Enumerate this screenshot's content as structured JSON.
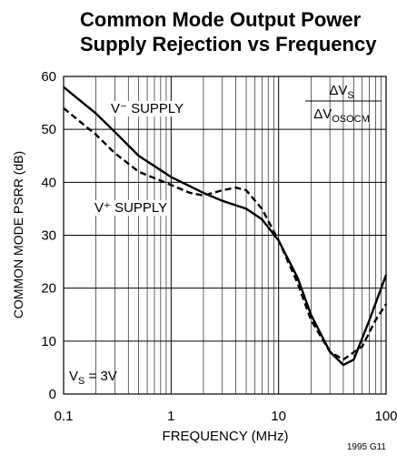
{
  "chart_data": {
    "type": "line",
    "title": [
      "Common Mode Output Power",
      "Supply Rejection vs Frequency"
    ],
    "x_label": "FREQUENCY (MHz)",
    "y_label": "COMMON MODE PSRR (dB)",
    "log_x": true,
    "grid": true,
    "xlim": [
      0.1,
      100
    ],
    "xticks": [
      0.1,
      1,
      10,
      100
    ],
    "x_minor_ticks": [
      0.2,
      0.3,
      0.4,
      0.5,
      0.6,
      0.7,
      0.8,
      0.9,
      2,
      3,
      4,
      5,
      6,
      7,
      8,
      9,
      20,
      30,
      40,
      50,
      60,
      70,
      80,
      90
    ],
    "ylim": [
      0,
      60
    ],
    "yticks": [
      0,
      10,
      20,
      30,
      40,
      50,
      60
    ],
    "series": [
      {
        "name": "V⁻ SUPPLY",
        "color": "#000000",
        "dash": false,
        "x": [
          0.1,
          0.2,
          0.3,
          0.5,
          1,
          2,
          3,
          5,
          7,
          10,
          15,
          20,
          30,
          40,
          50,
          70,
          100
        ],
        "values": [
          58,
          53,
          49.5,
          45,
          41,
          38,
          36.5,
          35,
          33,
          29,
          22,
          15,
          8,
          5.5,
          6.5,
          14,
          22.5
        ]
      },
      {
        "name": "V⁺ SUPPLY",
        "color": "#000000",
        "dash": true,
        "x": [
          0.1,
          0.2,
          0.3,
          0.5,
          1,
          1.5,
          2,
          3,
          4,
          5,
          7,
          10,
          15,
          20,
          30,
          40,
          60,
          80,
          100
        ],
        "values": [
          54,
          49,
          45.5,
          42,
          39.5,
          38,
          37.5,
          38.5,
          39,
          38.5,
          35,
          29,
          21,
          14,
          8,
          6.5,
          9,
          14,
          17
        ]
      }
    ],
    "annotations": {
      "ratio_top": {
        "main": "ΔV",
        "sub": "S"
      },
      "ratio_bottom": {
        "main": "ΔV",
        "sub": "OSOCM"
      },
      "supply_voltage": {
        "main": "V",
        "sub": "S",
        "rest": " = 3V"
      },
      "figure_code": "1995 G11"
    }
  }
}
